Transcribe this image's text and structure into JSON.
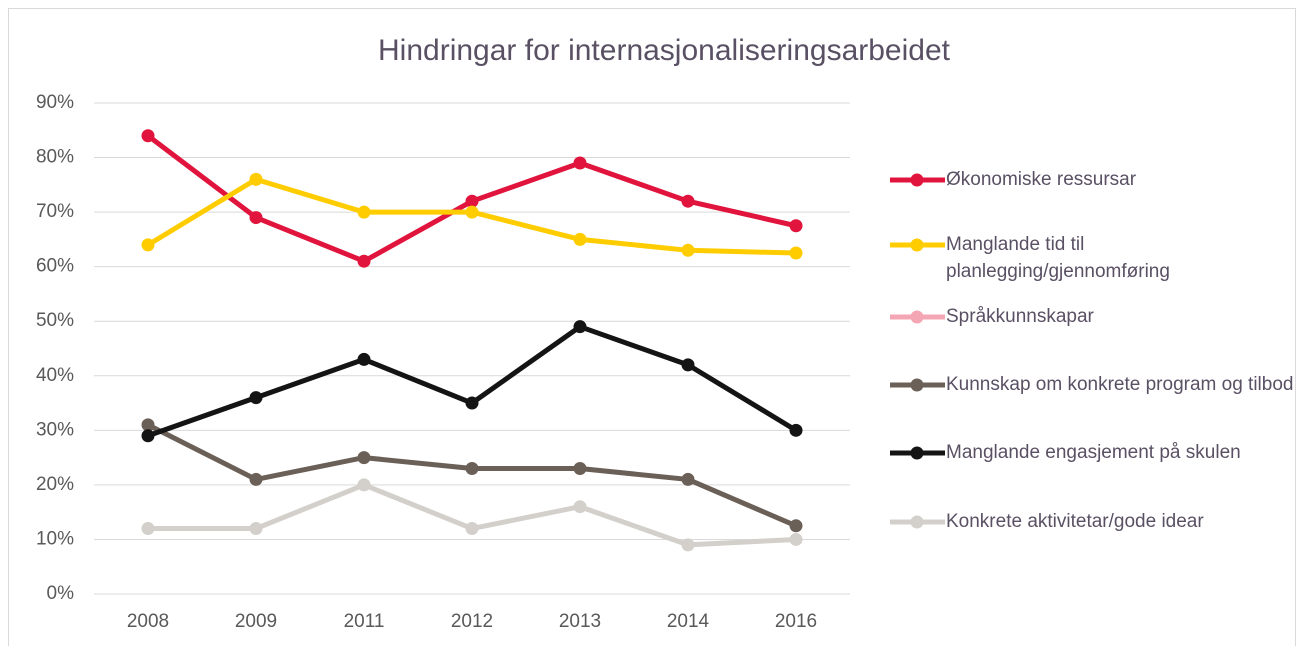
{
  "chart_data": {
    "type": "line",
    "title": "Hindringar for internasjonaliseringsarbeidet",
    "categories": [
      "2008",
      "2009",
      "2011",
      "2012",
      "2013",
      "2014",
      "2016"
    ],
    "series": [
      {
        "name": "Økonomiske ressursar",
        "color": "#e0143c",
        "values": [
          84,
          69,
          61,
          72,
          79,
          72,
          67.5
        ]
      },
      {
        "name": "Manglande tid til planlegging/gjennomføring",
        "color": "#ffcc00",
        "values": [
          64,
          76,
          70,
          70,
          65,
          63,
          62.5
        ]
      },
      {
        "name": "Språkkunnskapar",
        "color": "#f4a6b4",
        "values": [
          null,
          null,
          null,
          null,
          null,
          null,
          null
        ]
      },
      {
        "name": "Kunnskap om konkrete program og tilbod",
        "color": "#6b6058",
        "values": [
          31,
          21,
          25,
          23,
          23,
          21,
          12.5
        ]
      },
      {
        "name": "Manglande engasjement på skulen",
        "color": "#141414",
        "values": [
          29,
          36,
          43,
          35,
          49,
          42,
          30
        ]
      },
      {
        "name": "Konkrete aktivitetar/gode idear",
        "color": "#d3d0cb",
        "values": [
          12,
          12,
          20,
          12,
          16,
          9,
          10
        ]
      }
    ],
    "ylim": [
      0,
      90
    ],
    "yticks": [
      {
        "value": 0,
        "label": "0%"
      },
      {
        "value": 10,
        "label": "10%"
      },
      {
        "value": 20,
        "label": "20%"
      },
      {
        "value": 30,
        "label": "30%"
      },
      {
        "value": 40,
        "label": "40%"
      },
      {
        "value": 50,
        "label": "50%"
      },
      {
        "value": 60,
        "label": "60%"
      },
      {
        "value": 70,
        "label": "70%"
      },
      {
        "value": 80,
        "label": "80%"
      },
      {
        "value": 90,
        "label": "90%"
      }
    ],
    "grid": true,
    "legend": "right"
  }
}
